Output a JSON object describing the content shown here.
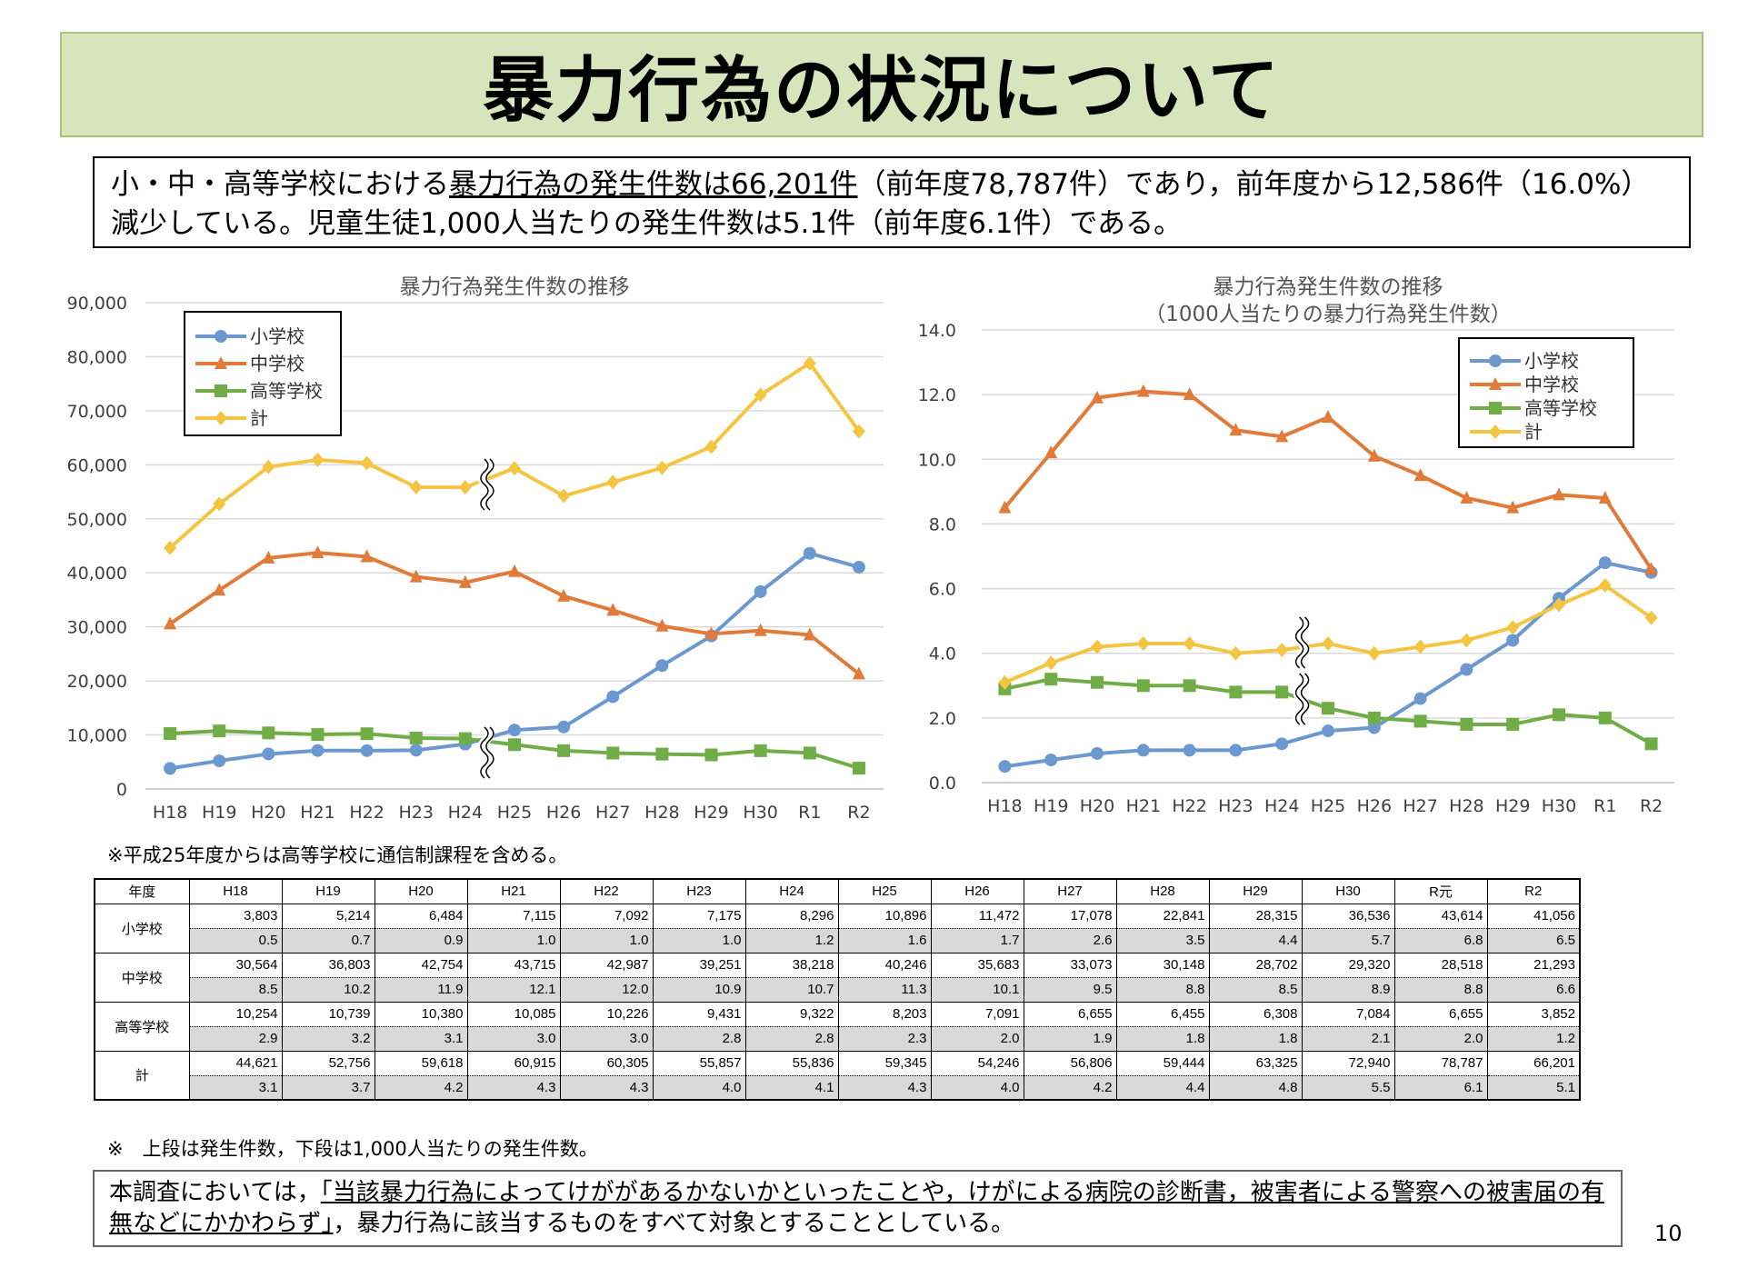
{
  "title": "暴力行為の状況について",
  "summary": {
    "part1": "小・中・高等学校における",
    "part2_underlined": "暴力行為の発生件数は66,201件",
    "part3": "（前年度78,787件）であり，前年度から12,586件（16.0%）減少している。児童生徒1,000人当たりの発生件数は5.1件（前年度6.1件）である。"
  },
  "chart_data": [
    {
      "type": "line",
      "title": "暴力行為発生件数の推移",
      "categories": [
        "H18",
        "H19",
        "H20",
        "H21",
        "H22",
        "H23",
        "H24",
        "H25",
        "H26",
        "H27",
        "H28",
        "H29",
        "H30",
        "R1",
        "R2"
      ],
      "yticks": [
        "0",
        "10,000",
        "20,000",
        "30,000",
        "40,000",
        "50,000",
        "60,000",
        "70,000",
        "80,000",
        "90,000"
      ],
      "ylim": [
        0,
        90000
      ],
      "legend_position": "top-left",
      "grid": true,
      "break_after_index": 6,
      "series": [
        {
          "name": "小学校",
          "color": "#6b98cf",
          "marker": "circle",
          "values": [
            3803,
            5214,
            6484,
            7115,
            7092,
            7175,
            8296,
            10896,
            11472,
            17078,
            22841,
            28315,
            36536,
            43614,
            41056
          ]
        },
        {
          "name": "中学校",
          "color": "#e07b39",
          "marker": "triangle",
          "values": [
            30564,
            36803,
            42754,
            43715,
            42987,
            39251,
            38218,
            40246,
            35683,
            33073,
            30148,
            28702,
            29320,
            28518,
            21293
          ]
        },
        {
          "name": "高等学校",
          "color": "#70ad47",
          "marker": "square",
          "values": [
            10254,
            10739,
            10380,
            10085,
            10226,
            9431,
            9322,
            8203,
            7091,
            6655,
            6455,
            6308,
            7084,
            6655,
            3852
          ]
        },
        {
          "name": "計",
          "color": "#f4c542",
          "marker": "diamond",
          "values": [
            44621,
            52756,
            59618,
            60915,
            60305,
            55857,
            55836,
            59345,
            54246,
            56806,
            59444,
            63325,
            72940,
            78787,
            66201
          ]
        }
      ]
    },
    {
      "type": "line",
      "title": "暴力行為発生件数の推移",
      "subtitle": "（1000人当たりの暴力行為発生件数）",
      "categories": [
        "H18",
        "H19",
        "H20",
        "H21",
        "H22",
        "H23",
        "H24",
        "H25",
        "H26",
        "H27",
        "H28",
        "H29",
        "H30",
        "R1",
        "R2"
      ],
      "yticks": [
        "0.0",
        "2.0",
        "4.0",
        "6.0",
        "8.0",
        "10.0",
        "12.0",
        "14.0"
      ],
      "ylim": [
        0,
        14
      ],
      "legend_position": "top-right",
      "grid": true,
      "break_after_index": 6,
      "series": [
        {
          "name": "小学校",
          "color": "#6b98cf",
          "marker": "circle",
          "values": [
            0.5,
            0.7,
            0.9,
            1.0,
            1.0,
            1.0,
            1.2,
            1.6,
            1.7,
            2.6,
            3.5,
            4.4,
            5.7,
            6.8,
            6.5
          ]
        },
        {
          "name": "中学校",
          "color": "#e07b39",
          "marker": "triangle",
          "values": [
            8.5,
            10.2,
            11.9,
            12.1,
            12.0,
            10.9,
            10.7,
            11.3,
            10.1,
            9.5,
            8.8,
            8.5,
            8.9,
            8.8,
            6.6
          ]
        },
        {
          "name": "高等学校",
          "color": "#70ad47",
          "marker": "square",
          "values": [
            2.9,
            3.2,
            3.1,
            3.0,
            3.0,
            2.8,
            2.8,
            2.3,
            2.0,
            1.9,
            1.8,
            1.8,
            2.1,
            2.0,
            1.2
          ]
        },
        {
          "name": "計",
          "color": "#f4c542",
          "marker": "diamond",
          "values": [
            3.1,
            3.7,
            4.2,
            4.3,
            4.3,
            4.0,
            4.1,
            4.3,
            4.0,
            4.2,
            4.4,
            4.8,
            5.5,
            6.1,
            5.1
          ]
        }
      ]
    }
  ],
  "note_above_table": "※平成25年度からは高等学校に通信制課程を含める。",
  "table": {
    "header_label": "年度",
    "years": [
      "H18",
      "H19",
      "H20",
      "H21",
      "H22",
      "H23",
      "H24",
      "H25",
      "H26",
      "H27",
      "H28",
      "H29",
      "H30",
      "R元",
      "R2"
    ],
    "rows": [
      {
        "label": "小学校",
        "counts": [
          "3,803",
          "5,214",
          "6,484",
          "7,115",
          "7,092",
          "7,175",
          "8,296",
          "10,896",
          "11,472",
          "17,078",
          "22,841",
          "28,315",
          "36,536",
          "43,614",
          "41,056"
        ],
        "rates": [
          "0.5",
          "0.7",
          "0.9",
          "1.0",
          "1.0",
          "1.0",
          "1.2",
          "1.6",
          "1.7",
          "2.6",
          "3.5",
          "4.4",
          "5.7",
          "6.8",
          "6.5"
        ]
      },
      {
        "label": "中学校",
        "counts": [
          "30,564",
          "36,803",
          "42,754",
          "43,715",
          "42,987",
          "39,251",
          "38,218",
          "40,246",
          "35,683",
          "33,073",
          "30,148",
          "28,702",
          "29,320",
          "28,518",
          "21,293"
        ],
        "rates": [
          "8.5",
          "10.2",
          "11.9",
          "12.1",
          "12.0",
          "10.9",
          "10.7",
          "11.3",
          "10.1",
          "9.5",
          "8.8",
          "8.5",
          "8.9",
          "8.8",
          "6.6"
        ]
      },
      {
        "label": "高等学校",
        "counts": [
          "10,254",
          "10,739",
          "10,380",
          "10,085",
          "10,226",
          "9,431",
          "9,322",
          "8,203",
          "7,091",
          "6,655",
          "6,455",
          "6,308",
          "7,084",
          "6,655",
          "3,852"
        ],
        "rates": [
          "2.9",
          "3.2",
          "3.1",
          "3.0",
          "3.0",
          "2.8",
          "2.8",
          "2.3",
          "2.0",
          "1.9",
          "1.8",
          "1.8",
          "2.1",
          "2.0",
          "1.2"
        ]
      },
      {
        "label": "計",
        "counts": [
          "44,621",
          "52,756",
          "59,618",
          "60,915",
          "60,305",
          "55,857",
          "55,836",
          "59,345",
          "54,246",
          "56,806",
          "59,444",
          "63,325",
          "72,940",
          "78,787",
          "66,201"
        ],
        "rates": [
          "3.1",
          "3.7",
          "4.2",
          "4.3",
          "4.3",
          "4.0",
          "4.1",
          "4.3",
          "4.0",
          "4.2",
          "4.4",
          "4.8",
          "5.5",
          "6.1",
          "5.1"
        ]
      }
    ]
  },
  "note_below_table": "※　上段は発生件数，下段は1,000人当たりの発生件数。",
  "footnote": {
    "part1": "本調査においては，",
    "part2_underlined": "「当該暴力行為によってけががあるかないかといったことや，けがによる病院の診断書，被害者による警察への被害届の有無などにかかわらず」",
    "part3": "，暴力行為に該当するものをすべて対象とすることとしている。"
  },
  "page_number": "10"
}
